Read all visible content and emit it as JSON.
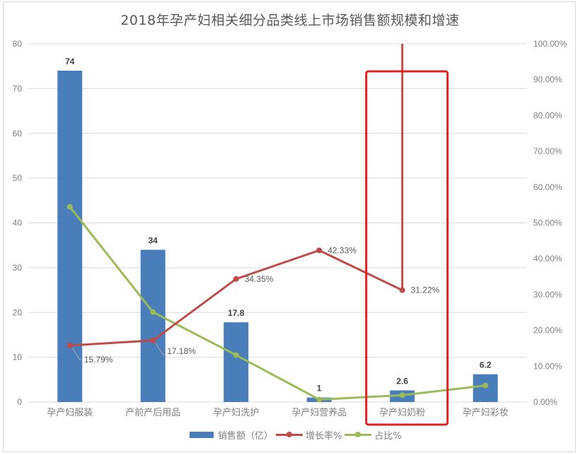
{
  "chart_data": {
    "type": "bar",
    "title": "2018年孕产妇相关细分品类线上市场销售额规模和增速",
    "categories": [
      "孕产妇服装",
      "产前产后用品",
      "孕产妇洗护",
      "孕产妇营养品",
      "孕产妇奶粉",
      "孕产妇彩妆"
    ],
    "series": [
      {
        "name": "销售额（亿）",
        "type": "bar",
        "axis": "left",
        "color": "#4a7ebb",
        "values": [
          74,
          34,
          17.8,
          1,
          2.6,
          6.2
        ],
        "labels": [
          "74",
          "34",
          "17.8",
          "1",
          "2.6",
          "6.2"
        ]
      },
      {
        "name": "增长率%",
        "type": "line",
        "axis": "right",
        "color": "#be4b48",
        "values": [
          15.79,
          17.18,
          34.35,
          42.33,
          31.22,
          null
        ],
        "labels": [
          "15.79%",
          "17.18%",
          "34.35%",
          "42.33%",
          "31.22%",
          ""
        ],
        "note": "line exits top of plot above 孕产妇奶粉 (value beyond 100%)"
      },
      {
        "name": "占比%",
        "type": "line",
        "axis": "right",
        "color": "#9bbb59",
        "values": [
          54.5,
          25.1,
          13.1,
          0.7,
          1.9,
          4.6
        ]
      }
    ],
    "left_axis": {
      "min": 0,
      "max": 80,
      "ticks": [
        "0",
        "10",
        "20",
        "30",
        "40",
        "50",
        "60",
        "70",
        "80"
      ]
    },
    "right_axis": {
      "min": 0,
      "max": 100,
      "ticks": [
        "0.00%",
        "10.00%",
        "20.00%",
        "30.00%",
        "40.00%",
        "50.00%",
        "60.00%",
        "70.00%",
        "80.00%",
        "90.00%",
        "100.00%"
      ]
    },
    "grid": true,
    "legend_position": "bottom",
    "annotation": {
      "type": "highlight-box",
      "target": "孕产妇奶粉",
      "color": "#e02020"
    }
  },
  "legend": {
    "bar": "销售额（亿）",
    "growth": "增长率%",
    "share": "占比%"
  }
}
